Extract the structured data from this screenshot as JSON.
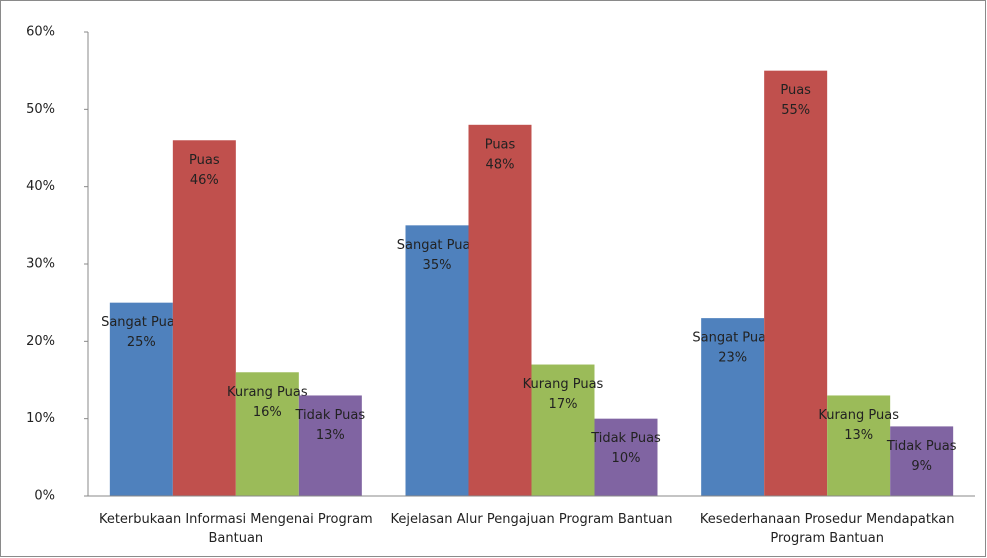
{
  "chart_data": {
    "type": "bar",
    "categories": [
      "Keterbukaan Informasi Mengenai Program Bantuan",
      "Kejelasan Alur Pengajuan Program Bantuan",
      "Kesederhanaan Prosedur Mendapatkan Program Bantuan"
    ],
    "series": [
      {
        "name": "Sangat Puas",
        "color": "#4f81bd",
        "values": [
          25,
          35,
          23
        ],
        "value_labels": [
          "25%",
          "35%",
          "23%"
        ]
      },
      {
        "name": "Puas",
        "color": "#c0504d",
        "values": [
          46,
          48,
          55
        ],
        "value_labels": [
          "46%",
          "48%",
          "55%"
        ]
      },
      {
        "name": "Kurang Puas",
        "color": "#9bbb59",
        "values": [
          16,
          17,
          13
        ],
        "value_labels": [
          "16%",
          "17%",
          "13%"
        ]
      },
      {
        "name": "Tidak Puas",
        "color": "#8064a2",
        "values": [
          13,
          10,
          9
        ],
        "value_labels": [
          "13%",
          "10%",
          "9%"
        ]
      }
    ],
    "ylim": [
      0,
      60
    ],
    "yticks": [
      {
        "value": 0,
        "label": "0%"
      },
      {
        "value": 10,
        "label": "10%"
      },
      {
        "value": 20,
        "label": "20%"
      },
      {
        "value": 30,
        "label": "30%"
      },
      {
        "value": 40,
        "label": "40%"
      },
      {
        "value": 50,
        "label": "50%"
      },
      {
        "value": 60,
        "label": "60%"
      }
    ]
  }
}
